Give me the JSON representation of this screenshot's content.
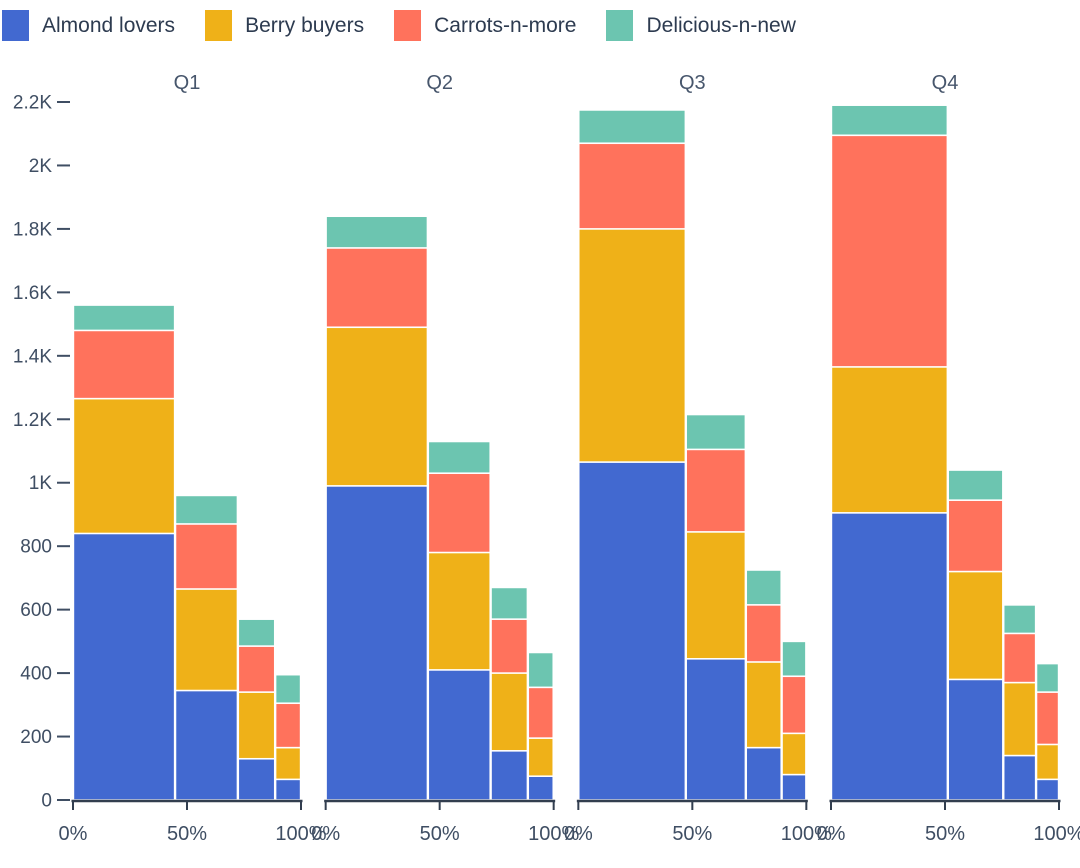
{
  "legend": {
    "items": [
      {
        "label": "Almond lovers",
        "color": "#4269d0"
      },
      {
        "label": "Berry buyers",
        "color": "#efb118"
      },
      {
        "label": "Carrots-n-more",
        "color": "#ff725c"
      },
      {
        "label": "Delicious-n-new",
        "color": "#6cc5b0"
      }
    ]
  },
  "chart_data": {
    "type": "bar",
    "subtype": "marimekko-stacked-columns",
    "title": "",
    "ylabel": "",
    "xlabel": "",
    "ylim": [
      0,
      2200
    ],
    "grid": false,
    "legend_position": "top-left",
    "series_names": [
      "Almond lovers",
      "Berry buyers",
      "Carrots-n-more",
      "Delicious-n-new"
    ],
    "series_colors": [
      "#4269d0",
      "#efb118",
      "#ff725c",
      "#6cc5b0"
    ],
    "y_axis": {
      "tick_values": [
        0,
        200,
        400,
        600,
        800,
        1000,
        1200,
        1400,
        1600,
        1800,
        2000,
        2200
      ],
      "tick_labels": [
        "0",
        "200",
        "400",
        "600",
        "800",
        "1K",
        "1.2K",
        "1.4K",
        "1.6K",
        "1.8K",
        "2K",
        "2.2K"
      ]
    },
    "x_axis": {
      "per_group_tick_labels": [
        "0%",
        "50%",
        "100%"
      ],
      "note": "each quarter has its own 0-100% width axis; bar width is proportional to bar total"
    },
    "groups": [
      {
        "label": "Q1",
        "bars": [
          {
            "stack": [
              840,
              425,
              215,
              80
            ],
            "total": 1560
          },
          {
            "stack": [
              345,
              320,
              205,
              90
            ],
            "total": 960
          },
          {
            "stack": [
              130,
              210,
              145,
              85
            ],
            "total": 570
          },
          {
            "stack": [
              65,
              100,
              140,
              90
            ],
            "total": 395
          }
        ]
      },
      {
        "label": "Q2",
        "bars": [
          {
            "stack": [
              990,
              500,
              250,
              100
            ],
            "total": 1840
          },
          {
            "stack": [
              410,
              370,
              250,
              100
            ],
            "total": 1130
          },
          {
            "stack": [
              155,
              245,
              170,
              100
            ],
            "total": 670
          },
          {
            "stack": [
              75,
              120,
              160,
              110
            ],
            "total": 465
          }
        ]
      },
      {
        "label": "Q3",
        "bars": [
          {
            "stack": [
              1065,
              735,
              270,
              105
            ],
            "total": 2175
          },
          {
            "stack": [
              445,
              400,
              260,
              110
            ],
            "total": 1215
          },
          {
            "stack": [
              165,
              270,
              180,
              110
            ],
            "total": 725
          },
          {
            "stack": [
              80,
              130,
              180,
              110
            ],
            "total": 500
          }
        ]
      },
      {
        "label": "Q4",
        "bars": [
          {
            "stack": [
              905,
              460,
              730,
              95
            ],
            "total": 2190
          },
          {
            "stack": [
              380,
              340,
              225,
              95
            ],
            "total": 1040
          },
          {
            "stack": [
              140,
              230,
              155,
              90
            ],
            "total": 615
          },
          {
            "stack": [
              65,
              110,
              165,
              90
            ],
            "total": 430
          }
        ]
      }
    ],
    "style": {
      "axis_text_color": "#3f4e63",
      "group_title_color": "#47566c",
      "axis_line_color": "#323e4f",
      "separator_color": "#ffffff"
    }
  }
}
